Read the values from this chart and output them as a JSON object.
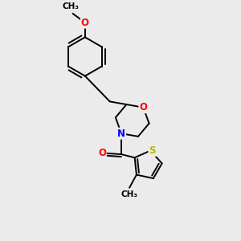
{
  "bg_color": "#ebebeb",
  "bond_color": "#000000",
  "bond_width": 1.4,
  "atom_colors": {
    "O": "#ff0000",
    "N": "#0000ff",
    "S": "#b8b800",
    "C": "#000000"
  },
  "font_size_atom": 8.5,
  "font_size_small": 7.5
}
